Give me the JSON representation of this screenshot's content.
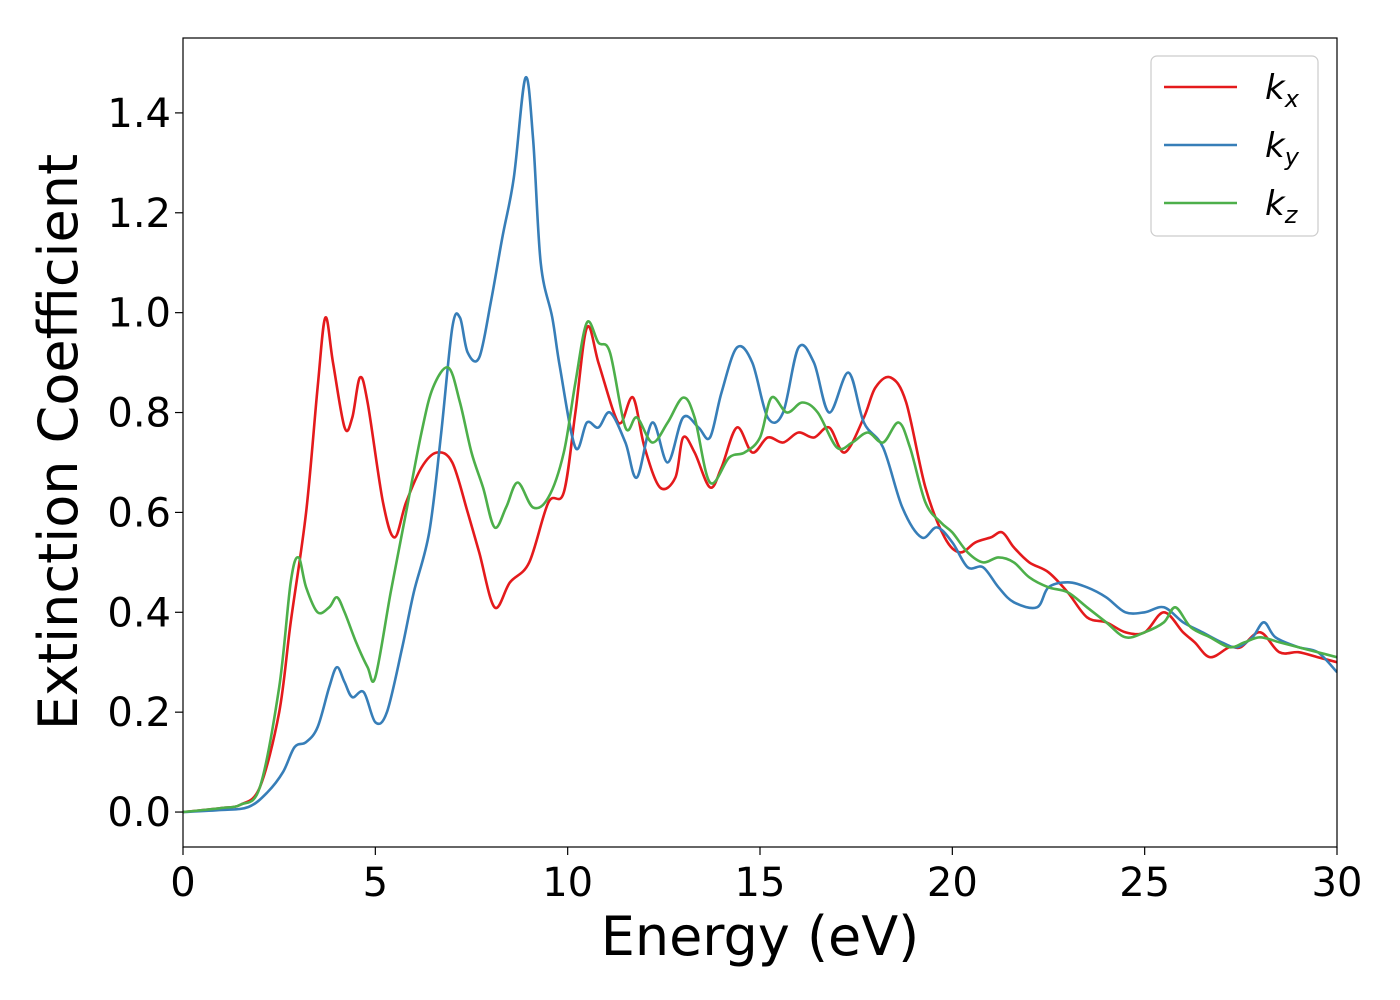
{
  "chart_data": {
    "type": "line",
    "title": "",
    "xlabel": "Energy (eV)",
    "ylabel": "Extinction Coefficient",
    "xlim": [
      0,
      30
    ],
    "ylim": [
      -0.07,
      1.55
    ],
    "xticks": [
      "0",
      "5",
      "10",
      "15",
      "20",
      "25",
      "30"
    ],
    "yticks": [
      "0.0",
      "0.2",
      "0.4",
      "0.6",
      "0.8",
      "1.0",
      "1.2",
      "1.4"
    ],
    "grid": false,
    "legend_position": "top-right",
    "series": [
      {
        "name": "k_x",
        "legend_base": "k",
        "legend_sub": "x",
        "color": "#e41a1c",
        "points": [
          [
            0,
            0
          ],
          [
            1,
            0.008
          ],
          [
            1.5,
            0.015
          ],
          [
            2.0,
            0.05
          ],
          [
            2.5,
            0.2
          ],
          [
            2.8,
            0.38
          ],
          [
            3.2,
            0.6
          ],
          [
            3.5,
            0.85
          ],
          [
            3.7,
            0.99
          ],
          [
            3.9,
            0.9
          ],
          [
            4.2,
            0.77
          ],
          [
            4.4,
            0.79
          ],
          [
            4.6,
            0.87
          ],
          [
            4.8,
            0.82
          ],
          [
            5.2,
            0.62
          ],
          [
            5.5,
            0.55
          ],
          [
            5.8,
            0.62
          ],
          [
            6.2,
            0.69
          ],
          [
            6.6,
            0.72
          ],
          [
            7.0,
            0.7
          ],
          [
            7.4,
            0.6
          ],
          [
            7.7,
            0.52
          ],
          [
            8.1,
            0.41
          ],
          [
            8.5,
            0.46
          ],
          [
            9.0,
            0.5
          ],
          [
            9.5,
            0.62
          ],
          [
            9.9,
            0.64
          ],
          [
            10.2,
            0.8
          ],
          [
            10.5,
            0.97
          ],
          [
            10.8,
            0.9
          ],
          [
            11.2,
            0.8
          ],
          [
            11.4,
            0.78
          ],
          [
            11.7,
            0.83
          ],
          [
            12.0,
            0.73
          ],
          [
            12.4,
            0.65
          ],
          [
            12.8,
            0.67
          ],
          [
            13.0,
            0.75
          ],
          [
            13.3,
            0.72
          ],
          [
            13.7,
            0.65
          ],
          [
            14.0,
            0.69
          ],
          [
            14.4,
            0.77
          ],
          [
            14.8,
            0.72
          ],
          [
            15.2,
            0.75
          ],
          [
            15.6,
            0.74
          ],
          [
            16.0,
            0.76
          ],
          [
            16.4,
            0.75
          ],
          [
            16.8,
            0.77
          ],
          [
            17.2,
            0.72
          ],
          [
            17.7,
            0.79
          ],
          [
            18.0,
            0.85
          ],
          [
            18.4,
            0.87
          ],
          [
            18.8,
            0.82
          ],
          [
            19.3,
            0.65
          ],
          [
            19.8,
            0.55
          ],
          [
            20.2,
            0.52
          ],
          [
            20.6,
            0.54
          ],
          [
            21.0,
            0.55
          ],
          [
            21.3,
            0.56
          ],
          [
            21.6,
            0.53
          ],
          [
            22.0,
            0.5
          ],
          [
            22.5,
            0.48
          ],
          [
            23.0,
            0.44
          ],
          [
            23.5,
            0.39
          ],
          [
            24.0,
            0.38
          ],
          [
            24.5,
            0.36
          ],
          [
            25.0,
            0.36
          ],
          [
            25.5,
            0.4
          ],
          [
            26.0,
            0.36
          ],
          [
            26.3,
            0.34
          ],
          [
            26.7,
            0.31
          ],
          [
            27.2,
            0.33
          ],
          [
            27.5,
            0.33
          ],
          [
            28.0,
            0.36
          ],
          [
            28.5,
            0.32
          ],
          [
            29.0,
            0.32
          ],
          [
            29.5,
            0.31
          ],
          [
            30.0,
            0.3
          ]
        ]
      },
      {
        "name": "k_y",
        "legend_base": "k",
        "legend_sub": "y",
        "color": "#377eb8",
        "points": [
          [
            0,
            0
          ],
          [
            1,
            0.004
          ],
          [
            1.7,
            0.01
          ],
          [
            2.2,
            0.04
          ],
          [
            2.6,
            0.08
          ],
          [
            2.9,
            0.13
          ],
          [
            3.2,
            0.14
          ],
          [
            3.5,
            0.17
          ],
          [
            3.8,
            0.25
          ],
          [
            4.0,
            0.29
          ],
          [
            4.2,
            0.26
          ],
          [
            4.4,
            0.23
          ],
          [
            4.7,
            0.24
          ],
          [
            5.0,
            0.18
          ],
          [
            5.3,
            0.2
          ],
          [
            5.7,
            0.33
          ],
          [
            6.0,
            0.44
          ],
          [
            6.4,
            0.56
          ],
          [
            6.7,
            0.75
          ],
          [
            7.0,
            0.97
          ],
          [
            7.2,
            0.99
          ],
          [
            7.4,
            0.92
          ],
          [
            7.7,
            0.91
          ],
          [
            8.0,
            1.02
          ],
          [
            8.3,
            1.15
          ],
          [
            8.6,
            1.27
          ],
          [
            8.9,
            1.47
          ],
          [
            9.1,
            1.35
          ],
          [
            9.3,
            1.1
          ],
          [
            9.6,
            0.99
          ],
          [
            9.8,
            0.89
          ],
          [
            10.2,
            0.73
          ],
          [
            10.5,
            0.78
          ],
          [
            10.8,
            0.77
          ],
          [
            11.1,
            0.8
          ],
          [
            11.5,
            0.74
          ],
          [
            11.8,
            0.67
          ],
          [
            12.2,
            0.78
          ],
          [
            12.6,
            0.7
          ],
          [
            13.0,
            0.79
          ],
          [
            13.4,
            0.77
          ],
          [
            13.7,
            0.75
          ],
          [
            14.0,
            0.84
          ],
          [
            14.4,
            0.93
          ],
          [
            14.8,
            0.9
          ],
          [
            15.2,
            0.79
          ],
          [
            15.6,
            0.8
          ],
          [
            16.0,
            0.93
          ],
          [
            16.4,
            0.9
          ],
          [
            16.8,
            0.8
          ],
          [
            17.3,
            0.88
          ],
          [
            17.7,
            0.78
          ],
          [
            18.2,
            0.73
          ],
          [
            18.7,
            0.61
          ],
          [
            19.2,
            0.55
          ],
          [
            19.6,
            0.57
          ],
          [
            20.0,
            0.54
          ],
          [
            20.4,
            0.49
          ],
          [
            20.8,
            0.49
          ],
          [
            21.2,
            0.45
          ],
          [
            21.6,
            0.42
          ],
          [
            22.2,
            0.41
          ],
          [
            22.5,
            0.45
          ],
          [
            23.0,
            0.46
          ],
          [
            23.5,
            0.45
          ],
          [
            24.0,
            0.43
          ],
          [
            24.5,
            0.4
          ],
          [
            25.0,
            0.4
          ],
          [
            25.5,
            0.41
          ],
          [
            26.0,
            0.38
          ],
          [
            26.5,
            0.36
          ],
          [
            27.0,
            0.34
          ],
          [
            27.4,
            0.33
          ],
          [
            27.8,
            0.35
          ],
          [
            28.1,
            0.38
          ],
          [
            28.4,
            0.35
          ],
          [
            29.0,
            0.33
          ],
          [
            29.5,
            0.32
          ],
          [
            30.0,
            0.28
          ]
        ]
      },
      {
        "name": "k_z",
        "legend_base": "k",
        "legend_sub": "z",
        "color": "#4daf4a",
        "points": [
          [
            0,
            0
          ],
          [
            1,
            0.008
          ],
          [
            1.5,
            0.015
          ],
          [
            2.0,
            0.05
          ],
          [
            2.5,
            0.25
          ],
          [
            2.8,
            0.46
          ],
          [
            3.0,
            0.51
          ],
          [
            3.2,
            0.45
          ],
          [
            3.5,
            0.4
          ],
          [
            3.8,
            0.41
          ],
          [
            4.0,
            0.43
          ],
          [
            4.2,
            0.4
          ],
          [
            4.5,
            0.34
          ],
          [
            4.8,
            0.29
          ],
          [
            5.0,
            0.27
          ],
          [
            5.4,
            0.44
          ],
          [
            5.8,
            0.6
          ],
          [
            6.2,
            0.76
          ],
          [
            6.5,
            0.85
          ],
          [
            6.9,
            0.89
          ],
          [
            7.2,
            0.82
          ],
          [
            7.5,
            0.72
          ],
          [
            7.8,
            0.65
          ],
          [
            8.1,
            0.57
          ],
          [
            8.4,
            0.61
          ],
          [
            8.7,
            0.66
          ],
          [
            9.1,
            0.61
          ],
          [
            9.5,
            0.63
          ],
          [
            9.9,
            0.72
          ],
          [
            10.2,
            0.86
          ],
          [
            10.5,
            0.98
          ],
          [
            10.8,
            0.94
          ],
          [
            11.1,
            0.92
          ],
          [
            11.5,
            0.77
          ],
          [
            11.8,
            0.79
          ],
          [
            12.2,
            0.74
          ],
          [
            12.6,
            0.78
          ],
          [
            13.0,
            0.83
          ],
          [
            13.3,
            0.79
          ],
          [
            13.7,
            0.66
          ],
          [
            14.2,
            0.71
          ],
          [
            14.6,
            0.72
          ],
          [
            15.0,
            0.75
          ],
          [
            15.3,
            0.83
          ],
          [
            15.7,
            0.8
          ],
          [
            16.1,
            0.82
          ],
          [
            16.5,
            0.8
          ],
          [
            17.0,
            0.73
          ],
          [
            17.4,
            0.74
          ],
          [
            17.8,
            0.76
          ],
          [
            18.2,
            0.74
          ],
          [
            18.6,
            0.78
          ],
          [
            18.9,
            0.73
          ],
          [
            19.3,
            0.62
          ],
          [
            19.7,
            0.58
          ],
          [
            20.0,
            0.56
          ],
          [
            20.4,
            0.52
          ],
          [
            20.8,
            0.5
          ],
          [
            21.2,
            0.51
          ],
          [
            21.6,
            0.5
          ],
          [
            22.0,
            0.47
          ],
          [
            22.5,
            0.45
          ],
          [
            23.0,
            0.44
          ],
          [
            23.5,
            0.41
          ],
          [
            24.0,
            0.38
          ],
          [
            24.5,
            0.35
          ],
          [
            25.0,
            0.36
          ],
          [
            25.5,
            0.38
          ],
          [
            25.8,
            0.41
          ],
          [
            26.2,
            0.37
          ],
          [
            26.7,
            0.35
          ],
          [
            27.2,
            0.33
          ],
          [
            27.6,
            0.34
          ],
          [
            28.0,
            0.35
          ],
          [
            28.5,
            0.34
          ],
          [
            29.0,
            0.33
          ],
          [
            29.5,
            0.32
          ],
          [
            30.0,
            0.31
          ]
        ]
      }
    ]
  }
}
